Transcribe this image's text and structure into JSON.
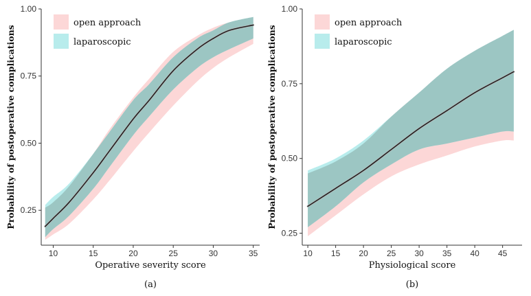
{
  "chart_data": [
    {
      "type": "line",
      "panel_label": "(a)",
      "title": "",
      "xlabel": "Operative severity score",
      "ylabel": "Probability of postoperative complications",
      "xlim": [
        8.5,
        35.8
      ],
      "ylim": [
        0.12,
        1.0
      ],
      "x_ticks": [
        10,
        15,
        20,
        25,
        30,
        35
      ],
      "y_ticks": [
        0.25,
        0.5,
        0.75,
        1.0
      ],
      "y_tick_labels": [
        "0.25",
        "0.50",
        "0.75",
        "1.00"
      ],
      "grid": false,
      "legend_position": "top-left",
      "colors": {
        "open": "#fcd7d7",
        "laparoscopic": "#b8ecec",
        "overlap": "#9cc6c3",
        "line": "#222222"
      },
      "x": [
        9,
        10,
        12,
        15,
        17,
        20,
        22,
        25,
        28,
        30,
        32,
        35
      ],
      "series": [
        {
          "name": "open approach",
          "fit": [
            0.19,
            0.22,
            0.28,
            0.39,
            0.47,
            0.59,
            0.66,
            0.77,
            0.85,
            0.89,
            0.92,
            0.94
          ],
          "lower": [
            0.14,
            0.16,
            0.2,
            0.29,
            0.36,
            0.47,
            0.54,
            0.64,
            0.73,
            0.78,
            0.82,
            0.87
          ],
          "upper": [
            0.26,
            0.28,
            0.34,
            0.46,
            0.55,
            0.67,
            0.74,
            0.84,
            0.9,
            0.93,
            0.95,
            0.97
          ]
        },
        {
          "name": "laparoscopic",
          "fit": [
            0.19,
            0.22,
            0.28,
            0.39,
            0.47,
            0.59,
            0.66,
            0.77,
            0.85,
            0.89,
            0.92,
            0.94
          ],
          "lower": [
            0.15,
            0.18,
            0.23,
            0.33,
            0.41,
            0.53,
            0.6,
            0.7,
            0.78,
            0.82,
            0.85,
            0.89
          ],
          "upper": [
            0.27,
            0.3,
            0.35,
            0.46,
            0.54,
            0.66,
            0.72,
            0.82,
            0.89,
            0.92,
            0.95,
            0.97
          ]
        }
      ]
    },
    {
      "type": "line",
      "panel_label": "(b)",
      "title": "",
      "xlabel": "Physiological score",
      "ylabel": "Probability of postoperative complications",
      "xlim": [
        9,
        48.5
      ],
      "ylim": [
        0.21,
        1.0
      ],
      "x_ticks": [
        10,
        15,
        20,
        25,
        30,
        35,
        40,
        45
      ],
      "y_ticks": [
        0.25,
        0.5,
        0.75,
        1.0
      ],
      "y_tick_labels": [
        "0.25",
        "0.50",
        "0.75",
        "1.00"
      ],
      "grid": false,
      "legend_position": "top-left",
      "colors": {
        "open": "#fcd7d7",
        "laparoscopic": "#b8ecec",
        "overlap": "#9cc6c3",
        "line": "#222222"
      },
      "x": [
        10,
        15,
        20,
        25,
        30,
        35,
        40,
        45,
        47
      ],
      "series": [
        {
          "name": "open approach",
          "fit": [
            0.34,
            0.4,
            0.46,
            0.53,
            0.6,
            0.66,
            0.72,
            0.77,
            0.79
          ],
          "lower": [
            0.24,
            0.31,
            0.38,
            0.44,
            0.48,
            0.51,
            0.54,
            0.56,
            0.56
          ],
          "upper": [
            0.45,
            0.49,
            0.55,
            0.64,
            0.72,
            0.8,
            0.86,
            0.91,
            0.93
          ]
        },
        {
          "name": "laparoscopic",
          "fit": [
            0.34,
            0.4,
            0.46,
            0.53,
            0.6,
            0.66,
            0.72,
            0.77,
            0.79
          ],
          "lower": [
            0.27,
            0.34,
            0.42,
            0.48,
            0.53,
            0.55,
            0.57,
            0.59,
            0.59
          ],
          "upper": [
            0.46,
            0.5,
            0.56,
            0.64,
            0.72,
            0.8,
            0.86,
            0.91,
            0.93
          ]
        }
      ]
    }
  ]
}
